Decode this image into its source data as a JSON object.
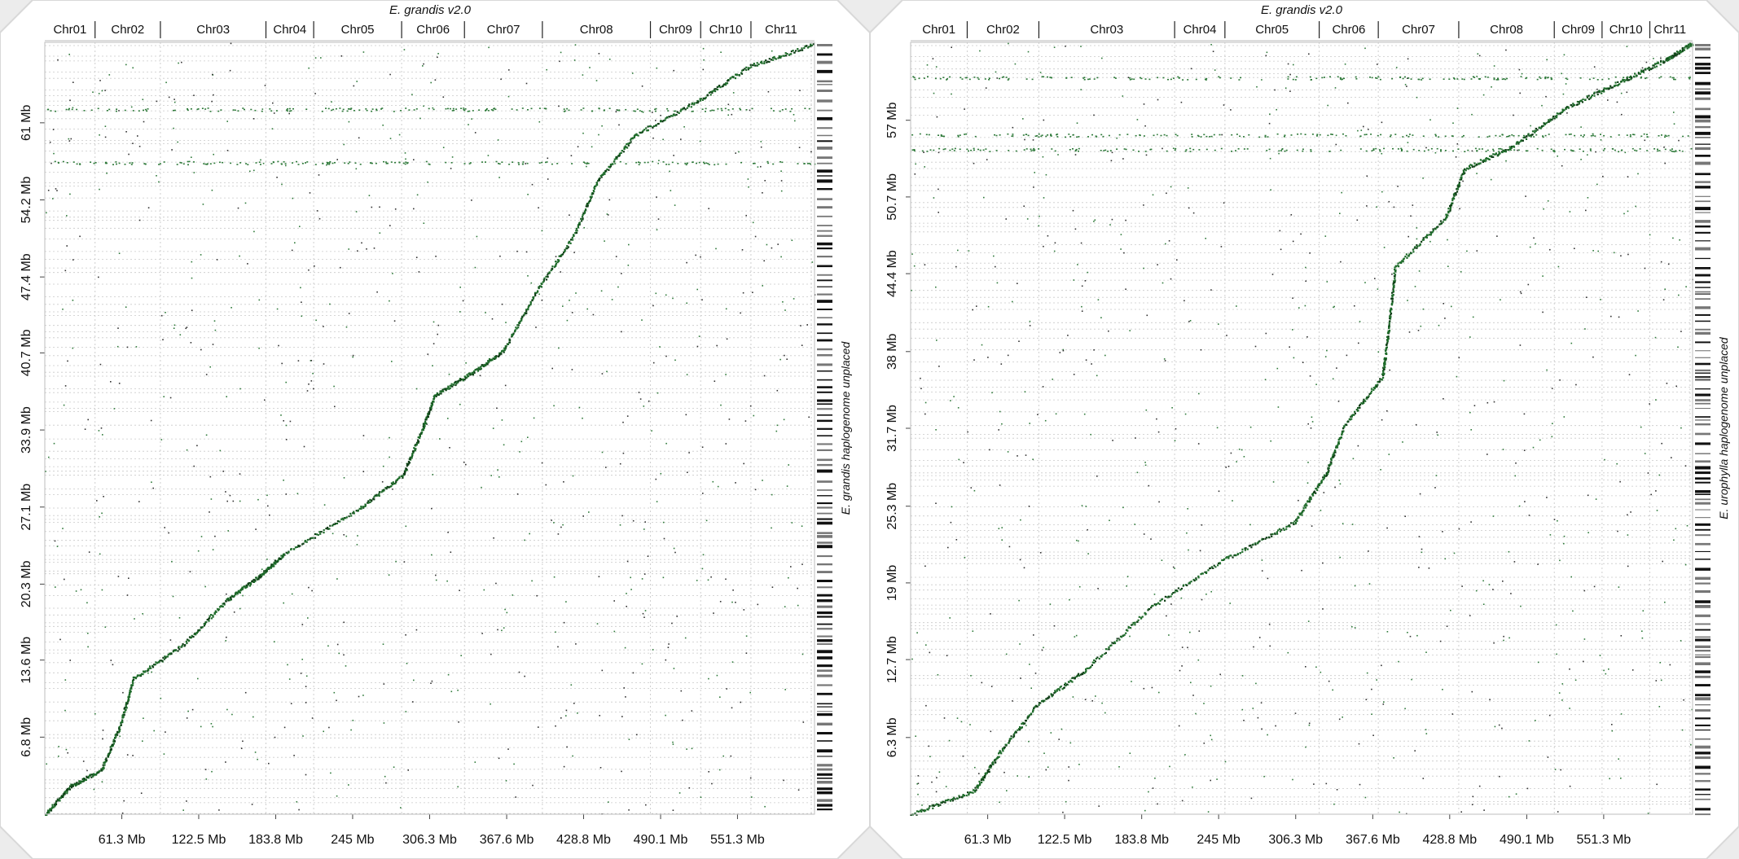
{
  "chart_data": [
    {
      "type": "scatter",
      "title": "E. grandis v2.0",
      "title_italic_part": "E. grandis",
      "title_rest": " v2.0",
      "ylabel": "E. grandis haplogenome unplaced",
      "ylabel_italic_part": "E. grandis",
      "ylabel_rest": " haplogenome unplaced",
      "chromosomes": [
        {
          "name": "Chr01",
          "start": 0,
          "end": 40
        },
        {
          "name": "Chr02",
          "start": 40,
          "end": 92
        },
        {
          "name": "Chr03",
          "start": 92,
          "end": 176
        },
        {
          "name": "Chr04",
          "start": 176,
          "end": 214
        },
        {
          "name": "Chr05",
          "start": 214,
          "end": 284
        },
        {
          "name": "Chr06",
          "start": 284,
          "end": 334
        },
        {
          "name": "Chr07",
          "start": 334,
          "end": 396
        },
        {
          "name": "Chr08",
          "start": 396,
          "end": 482
        },
        {
          "name": "Chr09",
          "start": 482,
          "end": 522
        },
        {
          "name": "Chr10",
          "start": 522,
          "end": 562
        },
        {
          "name": "Chr11",
          "start": 562,
          "end": 610
        }
      ],
      "x_unit": "Mb",
      "xlim": [
        0,
        612.6
      ],
      "x_ticks": [
        "61.3 Mb",
        "122.5 Mb",
        "183.8 Mb",
        "245 Mb",
        "306.3 Mb",
        "367.6 Mb",
        "428.8 Mb",
        "490.1 Mb",
        "551.3 Mb"
      ],
      "x_tick_values": [
        61.3,
        122.5,
        183.8,
        245,
        306.3,
        367.6,
        428.8,
        490.1,
        551.3
      ],
      "ylim": [
        0,
        68.1
      ],
      "y_ticks": [
        "6.8 Mb",
        "13.6 Mb",
        "20.3 Mb",
        "27.1 Mb",
        "33.9 Mb",
        "40.7 Mb",
        "47.4 Mb",
        "54.2 Mb",
        "61 Mb"
      ],
      "y_tick_values": [
        6.8,
        13.6,
        20.3,
        27.1,
        33.9,
        40.7,
        47.4,
        54.2,
        61
      ],
      "diagonal_path": [
        [
          0,
          0
        ],
        [
          20,
          2.5
        ],
        [
          45,
          4
        ],
        [
          60,
          8
        ],
        [
          70,
          12
        ],
        [
          110,
          15
        ],
        [
          145,
          19
        ],
        [
          170,
          21
        ],
        [
          190,
          23
        ],
        [
          250,
          27
        ],
        [
          285,
          30
        ],
        [
          300,
          34
        ],
        [
          310,
          37
        ],
        [
          340,
          39
        ],
        [
          365,
          41
        ],
        [
          390,
          46
        ],
        [
          420,
          51
        ],
        [
          440,
          56
        ],
        [
          470,
          60
        ],
        [
          520,
          63
        ],
        [
          560,
          66
        ],
        [
          612,
          68
        ]
      ],
      "noise_points": 900,
      "accent_color": "#1e6b2a",
      "point_color": "#2f7a3a"
    },
    {
      "type": "scatter",
      "title": "E. grandis v2.0",
      "title_italic_part": "E. grandis",
      "title_rest": " v2.0",
      "ylabel": "E. urophylla haplogenome unplaced",
      "ylabel_italic_part": "E. urophylla",
      "ylabel_rest": " haplogenome unplaced",
      "chromosomes": [
        {
          "name": "Chr01",
          "start": 0,
          "end": 45
        },
        {
          "name": "Chr02",
          "start": 45,
          "end": 102
        },
        {
          "name": "Chr03",
          "start": 102,
          "end": 210
        },
        {
          "name": "Chr04",
          "start": 210,
          "end": 250
        },
        {
          "name": "Chr05",
          "start": 250,
          "end": 325
        },
        {
          "name": "Chr06",
          "start": 325,
          "end": 372
        },
        {
          "name": "Chr07",
          "start": 372,
          "end": 436
        },
        {
          "name": "Chr08",
          "start": 436,
          "end": 512
        },
        {
          "name": "Chr09",
          "start": 512,
          "end": 550
        },
        {
          "name": "Chr10",
          "start": 550,
          "end": 588
        },
        {
          "name": "Chr11",
          "start": 588,
          "end": 620
        }
      ],
      "x_unit": "Mb",
      "xlim": [
        0,
        622
      ],
      "x_ticks": [
        "61.3 Mb",
        "122.5 Mb",
        "183.8 Mb",
        "245 Mb",
        "306.3 Mb",
        "367.6 Mb",
        "428.8 Mb",
        "490.1 Mb",
        "551.3 Mb"
      ],
      "x_tick_values": [
        61.3,
        122.5,
        183.8,
        245,
        306.3,
        367.6,
        428.8,
        490.1,
        551.3
      ],
      "ylim": [
        0,
        63.4
      ],
      "y_ticks": [
        "6.3 Mb",
        "12.7 Mb",
        "19 Mb",
        "25.3 Mb",
        "31.7 Mb",
        "38 Mb",
        "44.4 Mb",
        "50.7 Mb",
        "57 Mb"
      ],
      "y_tick_values": [
        6.3,
        12.7,
        19,
        25.3,
        31.7,
        38,
        44.4,
        50.7,
        57
      ],
      "diagonal_path": [
        [
          0,
          0
        ],
        [
          50,
          2
        ],
        [
          70,
          5
        ],
        [
          100,
          9
        ],
        [
          140,
          12
        ],
        [
          190,
          17
        ],
        [
          250,
          21
        ],
        [
          305,
          24
        ],
        [
          330,
          28
        ],
        [
          345,
          32
        ],
        [
          375,
          36
        ],
        [
          380,
          40
        ],
        [
          385,
          45
        ],
        [
          425,
          49
        ],
        [
          440,
          53
        ],
        [
          480,
          55
        ],
        [
          520,
          58
        ],
        [
          560,
          60
        ],
        [
          600,
          62
        ],
        [
          622,
          63.4
        ]
      ],
      "noise_points": 900,
      "accent_color": "#1e6b2a",
      "point_color": "#2f7a3a"
    }
  ]
}
